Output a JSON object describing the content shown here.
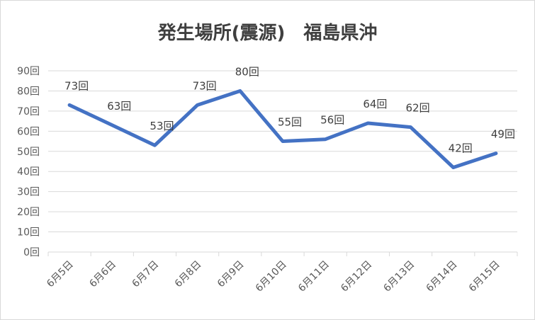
{
  "chart_data": {
    "type": "line",
    "title": "発生場所(震源)　福島県沖",
    "categories": [
      "6月5日",
      "6月6日",
      "6月7日",
      "6月8日",
      "6月9日",
      "6月10日",
      "6月11日",
      "6月12日",
      "6月13日",
      "6月14日",
      "6月15日"
    ],
    "series": [
      {
        "values": [
          73,
          63,
          53,
          73,
          80,
          55,
          56,
          64,
          62,
          42,
          49
        ],
        "color": "#4472c4"
      }
    ],
    "data_labels": [
      "73回",
      "63回",
      "53回",
      "73回",
      "80回",
      "55回",
      "56回",
      "64回",
      "62回",
      "42回",
      "49回"
    ],
    "y_tick_labels": [
      "0回",
      "10回",
      "20回",
      "30回",
      "40回",
      "50回",
      "60回",
      "70回",
      "80回",
      "90回"
    ],
    "ylim": [
      0,
      90
    ],
    "grid": true,
    "legend": "none",
    "xlabel": "",
    "ylabel": ""
  }
}
